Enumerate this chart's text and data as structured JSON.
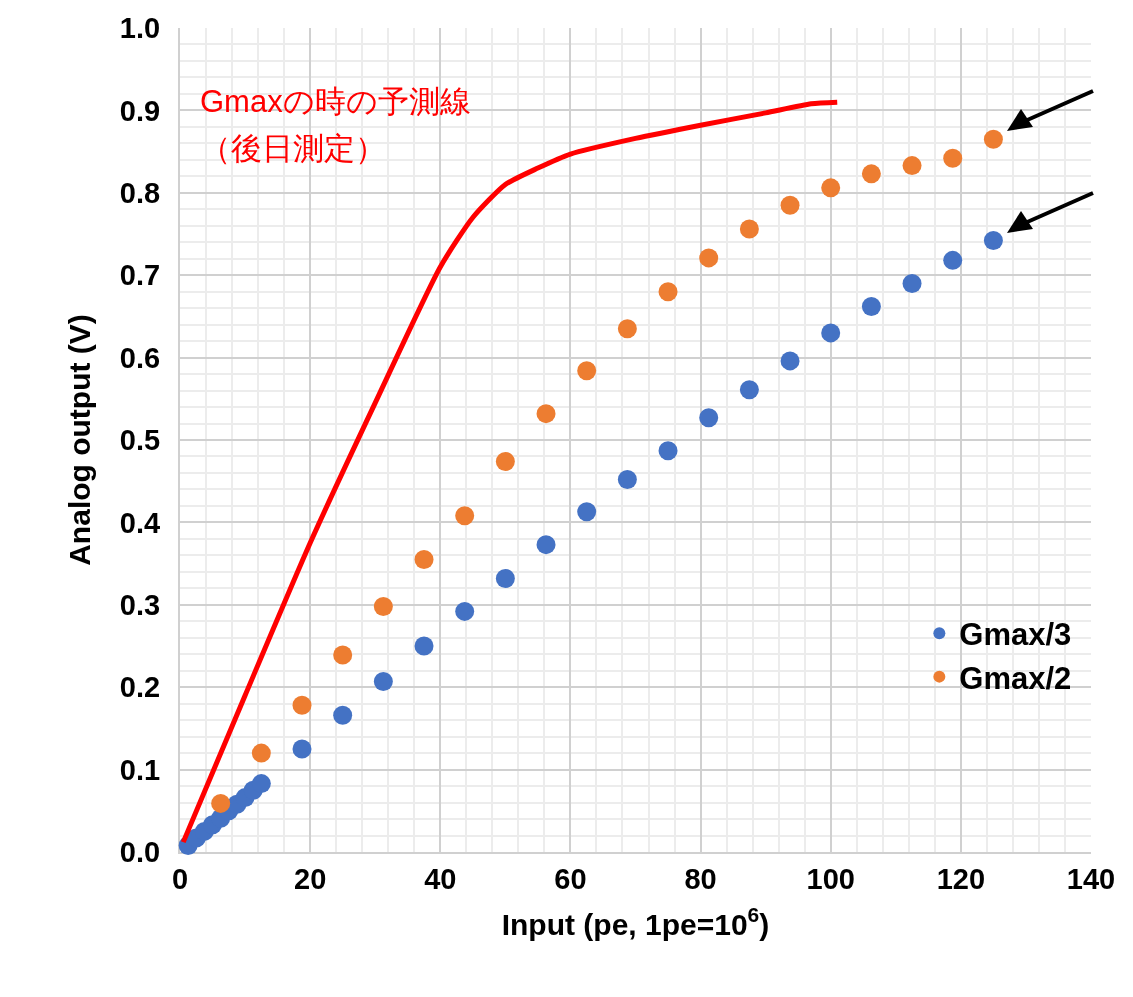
{
  "chart_data": {
    "type": "scatter",
    "xlabel": "Input (pe, 1pe=10$^{6}$)",
    "ylabel": "Analog output (V)",
    "annotations": [
      "Gmaxの時の予測線",
      "（後日測定）"
    ],
    "xlim": [
      0,
      140
    ],
    "xticks": [
      0,
      20,
      40,
      60,
      80,
      100,
      120,
      140
    ],
    "ylim": [
      0,
      1
    ],
    "yticks": [
      {
        "value": 0,
        "label": "0.0"
      },
      {
        "value": 0.1,
        "label": "0.1"
      },
      {
        "value": 0.2,
        "label": "0.2"
      },
      {
        "value": 0.3,
        "label": "0.3"
      },
      {
        "value": 0.4,
        "label": "0.4"
      },
      {
        "value": 0.5,
        "label": "0.5"
      },
      {
        "value": 0.6,
        "label": "0.6"
      },
      {
        "value": 0.7,
        "label": "0.7"
      },
      {
        "value": 0.8,
        "label": "0.8"
      },
      {
        "value": 0.9,
        "label": "0.9"
      },
      {
        "value": 1,
        "label": "1.0"
      }
    ],
    "grid": true,
    "legend": "bottom right",
    "marker": "circle",
    "series": [
      {
        "type": "line",
        "color": "#ff0000",
        "marker": "none",
        "x": [
          0.5,
          10,
          20,
          30,
          40,
          45,
          50,
          55,
          60,
          70,
          80,
          90,
          97,
          101
        ],
        "values": [
          0.012,
          0.19,
          0.375,
          0.545,
          0.71,
          0.77,
          0.81,
          0.83,
          0.847,
          0.866,
          0.882,
          0.897,
          0.908,
          0.91
        ]
      },
      {
        "name": "Gmax/3",
        "color": "#4472c4",
        "x": [
          1.25,
          2.5,
          3.75,
          5,
          6.25,
          7.5,
          8.75,
          10,
          11.25,
          12.5,
          18.75,
          25,
          31.25,
          37.5,
          43.75,
          50,
          56.25,
          62.5,
          68.75,
          75,
          81.25,
          87.5,
          93.75,
          100,
          106.25,
          112.5,
          118.75,
          125
        ],
        "values": [
          0.008,
          0.017,
          0.025,
          0.033,
          0.041,
          0.05,
          0.058,
          0.066,
          0.075,
          0.083,
          0.125,
          0.166,
          0.207,
          0.25,
          0.292,
          0.332,
          0.373,
          0.413,
          0.452,
          0.487,
          0.527,
          0.561,
          0.596,
          0.63,
          0.662,
          0.69,
          0.718,
          0.742
        ]
      },
      {
        "name": "Gmax/2",
        "color": "#ed7d31",
        "x": [
          6.25,
          12.5,
          18.75,
          25,
          31.25,
          37.5,
          43.75,
          50,
          56.25,
          62.5,
          68.75,
          75,
          81.25,
          87.5,
          93.75,
          100,
          106.25,
          112.5,
          118.75,
          125
        ],
        "values": [
          0.059,
          0.12,
          0.178,
          0.239,
          0.298,
          0.355,
          0.408,
          0.474,
          0.532,
          0.584,
          0.635,
          0.68,
          0.721,
          0.756,
          0.785,
          0.806,
          0.823,
          0.833,
          0.842,
          0.865
        ]
      }
    ]
  }
}
